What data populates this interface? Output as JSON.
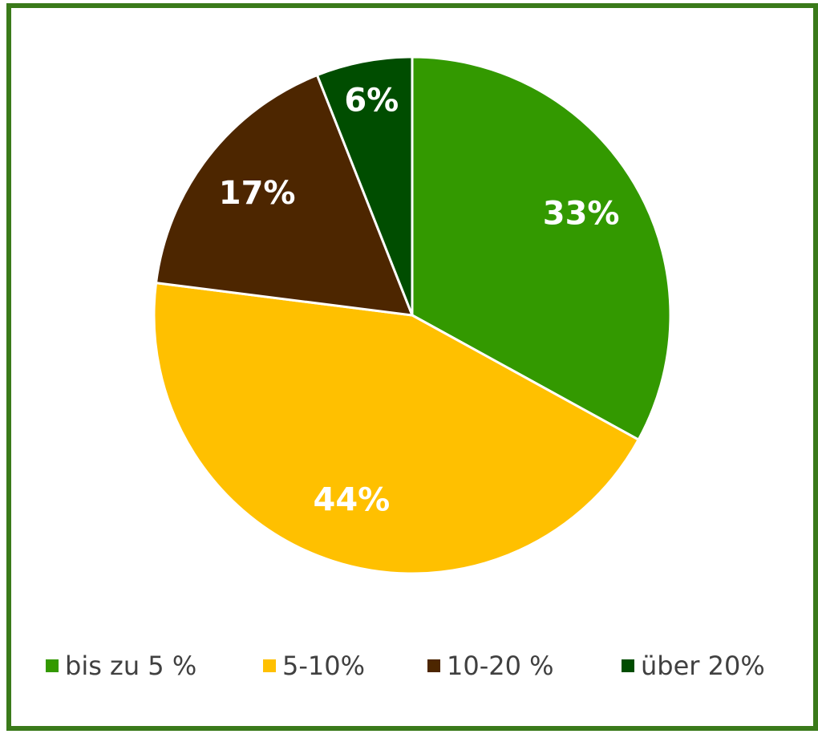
{
  "chart_data": {
    "type": "pie",
    "categories": [
      "bis zu 5 %",
      "5-10%",
      "10-20 %",
      "über 20%"
    ],
    "values": [
      33,
      44,
      17,
      6
    ],
    "value_labels": [
      "33%",
      "44%",
      "17%",
      "6%"
    ],
    "colors": [
      "#339900",
      "#ffc000",
      "#4d2600",
      "#004d00"
    ],
    "legend": "bottom"
  }
}
